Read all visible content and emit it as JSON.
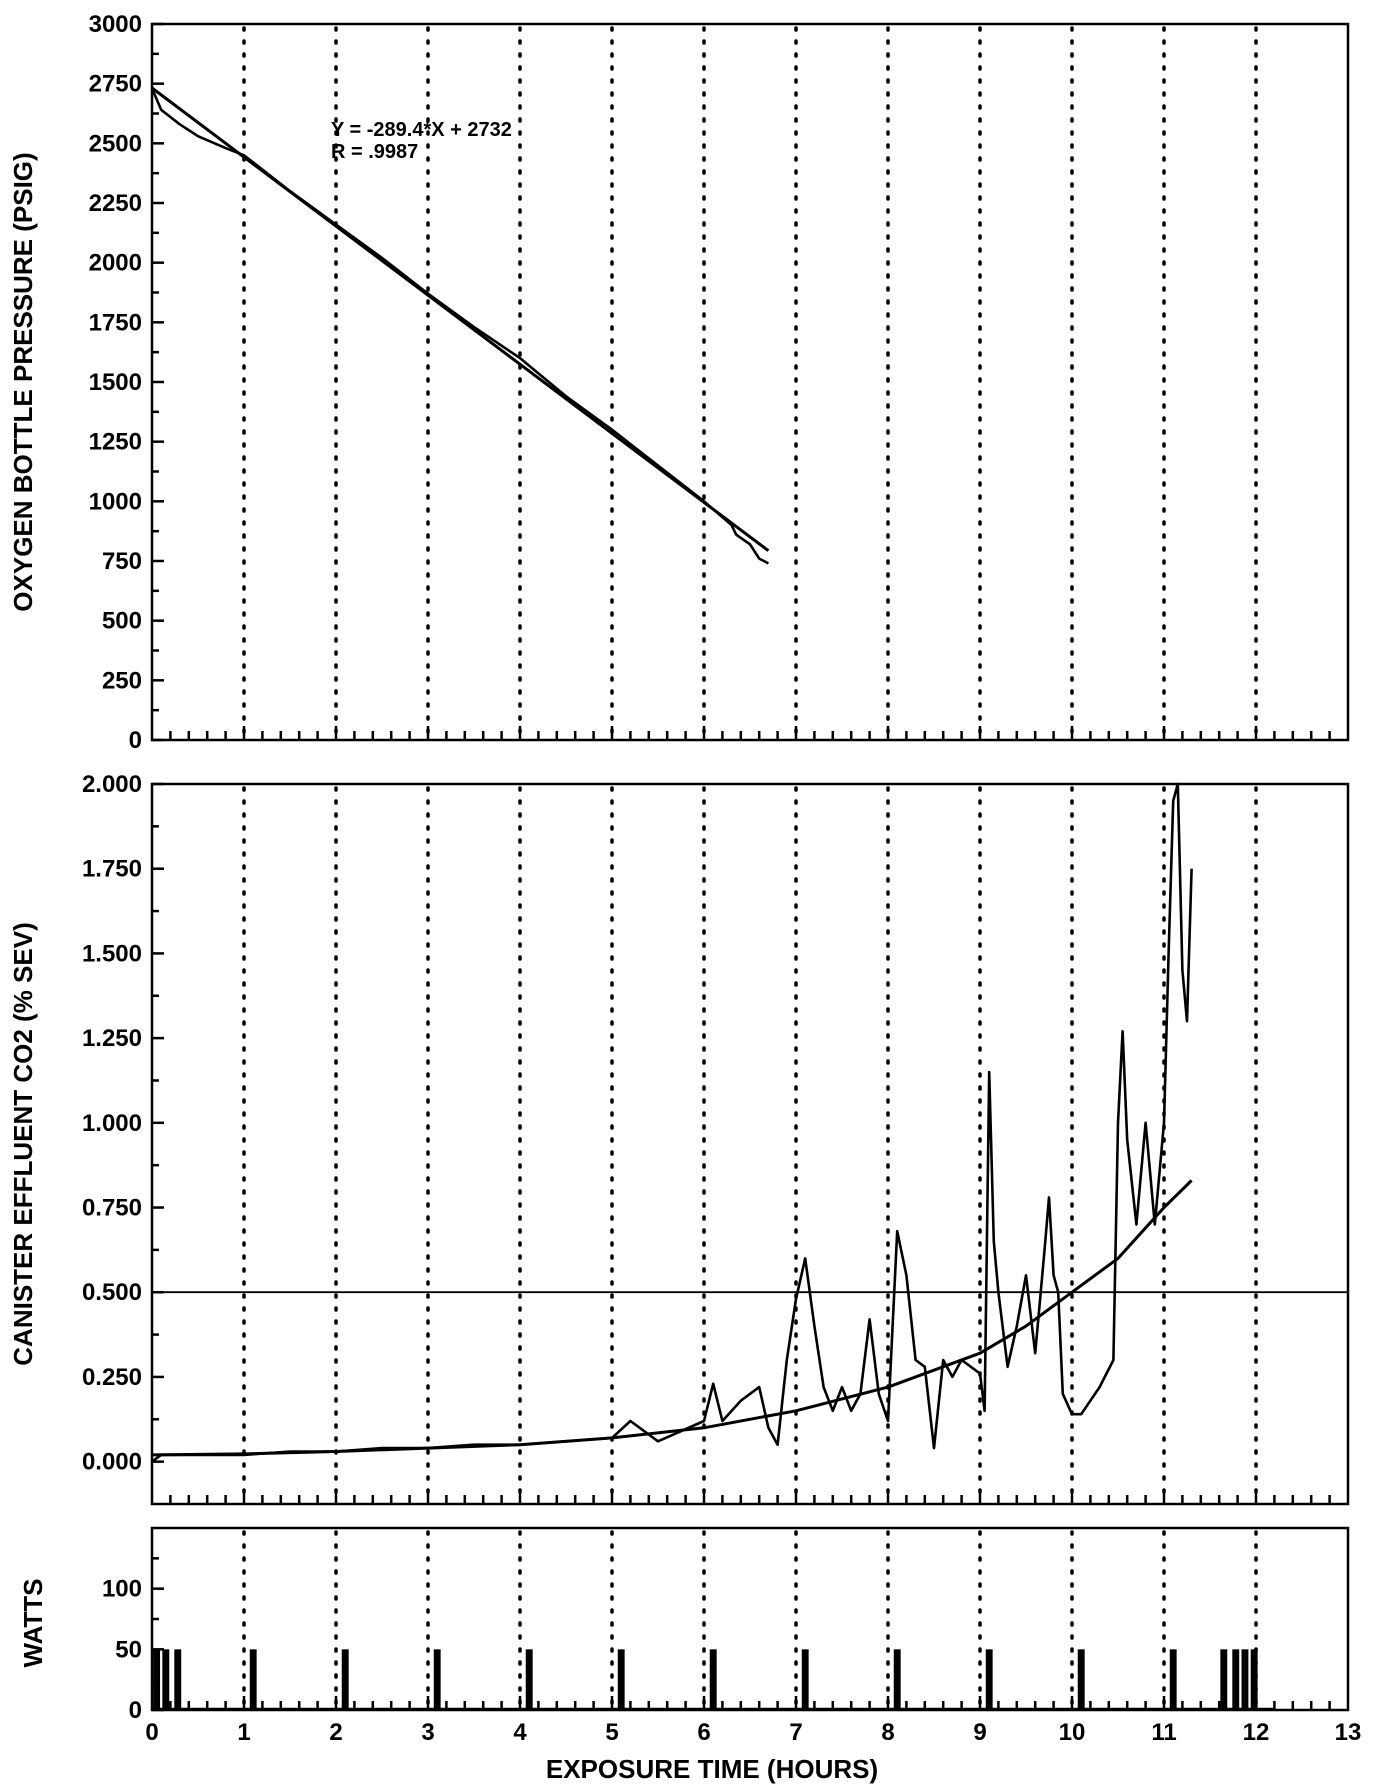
{
  "chart_data": [
    {
      "type": "line",
      "panel": "top",
      "ylabel": "OXYGEN BOTTLE PRESSURE (PSIG)",
      "xlim": [
        0,
        13
      ],
      "ylim": [
        0,
        3000
      ],
      "yticks": [
        0,
        250,
        500,
        750,
        1000,
        1250,
        1500,
        1750,
        2000,
        2250,
        2500,
        2750,
        3000
      ],
      "xgrid": [
        1,
        2,
        3,
        4,
        5,
        6,
        7,
        8,
        9,
        10,
        11,
        12
      ],
      "annotations": [
        "Y = -289.4*X + 2732",
        "R = .9987"
      ],
      "series": [
        {
          "role": "measured",
          "x": [
            0,
            0.1,
            0.3,
            0.5,
            0.8,
            1.0,
            1.5,
            2.0,
            2.5,
            3.0,
            3.5,
            4.0,
            4.5,
            5.0,
            5.5,
            6.0,
            6.3,
            6.35,
            6.5,
            6.6,
            6.7
          ],
          "y": [
            2730,
            2640,
            2580,
            2530,
            2480,
            2450,
            2300,
            2160,
            2020,
            1870,
            1730,
            1600,
            1440,
            1300,
            1150,
            1000,
            900,
            860,
            820,
            760,
            740
          ]
        },
        {
          "role": "fit",
          "x": [
            0,
            6.7
          ],
          "y": [
            2732,
            793
          ]
        }
      ]
    },
    {
      "type": "line",
      "panel": "middle",
      "ylabel": "CANISTER EFFLUENT CO2 (% SEV)",
      "xlim": [
        0,
        13
      ],
      "ylim": [
        -0.125,
        2.0
      ],
      "yticks": [
        0.0,
        0.25,
        0.5,
        0.75,
        1.0,
        1.25,
        1.5,
        1.75,
        2.0
      ],
      "ytick_labels": [
        "0.000",
        "0.250",
        "0.500",
        "0.750",
        "1.000",
        "1.250",
        "1.500",
        "1.750",
        "2.000"
      ],
      "xgrid": [
        1,
        2,
        3,
        4,
        5,
        6,
        7,
        8,
        9,
        10,
        11,
        12
      ],
      "series": [
        {
          "role": "measured",
          "x": [
            0,
            0.1,
            0.5,
            1.0,
            1.5,
            2.0,
            2.5,
            3.0,
            3.5,
            4.0,
            4.5,
            5.0,
            5.2,
            5.5,
            6.0,
            6.1,
            6.2,
            6.4,
            6.6,
            6.7,
            6.8,
            6.9,
            7.0,
            7.1,
            7.2,
            7.3,
            7.4,
            7.5,
            7.6,
            7.7,
            7.8,
            7.9,
            8.0,
            8.1,
            8.2,
            8.3,
            8.4,
            8.5,
            8.6,
            8.7,
            8.8,
            9.0,
            9.05,
            9.1,
            9.15,
            9.2,
            9.3,
            9.4,
            9.5,
            9.6,
            9.7,
            9.75,
            9.8,
            9.85,
            9.9,
            10.0,
            10.1,
            10.3,
            10.45,
            10.5,
            10.55,
            10.6,
            10.7,
            10.8,
            10.9,
            11.0,
            11.05,
            11.1,
            11.15,
            11.2,
            11.25,
            11.3
          ],
          "y": [
            0.0,
            0.02,
            0.02,
            0.02,
            0.03,
            0.03,
            0.04,
            0.04,
            0.05,
            0.05,
            0.06,
            0.07,
            0.12,
            0.06,
            0.12,
            0.23,
            0.12,
            0.18,
            0.22,
            0.1,
            0.05,
            0.3,
            0.48,
            0.6,
            0.4,
            0.22,
            0.15,
            0.22,
            0.15,
            0.2,
            0.42,
            0.2,
            0.12,
            0.68,
            0.55,
            0.3,
            0.28,
            0.04,
            0.3,
            0.25,
            0.3,
            0.26,
            0.15,
            1.15,
            0.65,
            0.5,
            0.28,
            0.4,
            0.55,
            0.32,
            0.62,
            0.78,
            0.55,
            0.5,
            0.2,
            0.14,
            0.14,
            0.22,
            0.3,
            1.0,
            1.27,
            0.95,
            0.7,
            1.0,
            0.7,
            1.0,
            1.5,
            1.95,
            2.0,
            1.45,
            1.3,
            1.75
          ]
        },
        {
          "role": "fit",
          "x": [
            0,
            1,
            2,
            3,
            4,
            5,
            6,
            7,
            8,
            9,
            9.5,
            10,
            10.5,
            11,
            11.3
          ],
          "y": [
            0.02,
            0.023,
            0.03,
            0.04,
            0.05,
            0.07,
            0.1,
            0.15,
            0.22,
            0.32,
            0.4,
            0.5,
            0.6,
            0.75,
            0.83
          ]
        },
        {
          "role": "threshold",
          "x": [
            0,
            13
          ],
          "y": [
            0.5,
            0.5
          ]
        }
      ]
    },
    {
      "type": "bar",
      "panel": "bottom",
      "ylabel": "WATTS",
      "xlabel": "EXPOSURE TIME (HOURS)",
      "xlim": [
        0,
        13
      ],
      "ylim": [
        0,
        150
      ],
      "yticks": [
        0,
        50,
        100
      ],
      "xticks": [
        0,
        1,
        2,
        3,
        4,
        5,
        6,
        7,
        8,
        9,
        10,
        11,
        12,
        13
      ],
      "xgrid": [
        1,
        2,
        3,
        4,
        5,
        6,
        7,
        8,
        9,
        10,
        11,
        12
      ],
      "x": [
        0.05,
        0.15,
        0.28,
        1.1,
        2.1,
        3.1,
        4.1,
        5.1,
        6.1,
        7.1,
        8.1,
        9.1,
        10.1,
        11.1,
        11.65,
        11.78,
        11.88,
        11.98
      ],
      "values": [
        50,
        50,
        50,
        50,
        50,
        50,
        50,
        50,
        50,
        50,
        50,
        50,
        50,
        50,
        50,
        50,
        50,
        50
      ]
    }
  ]
}
